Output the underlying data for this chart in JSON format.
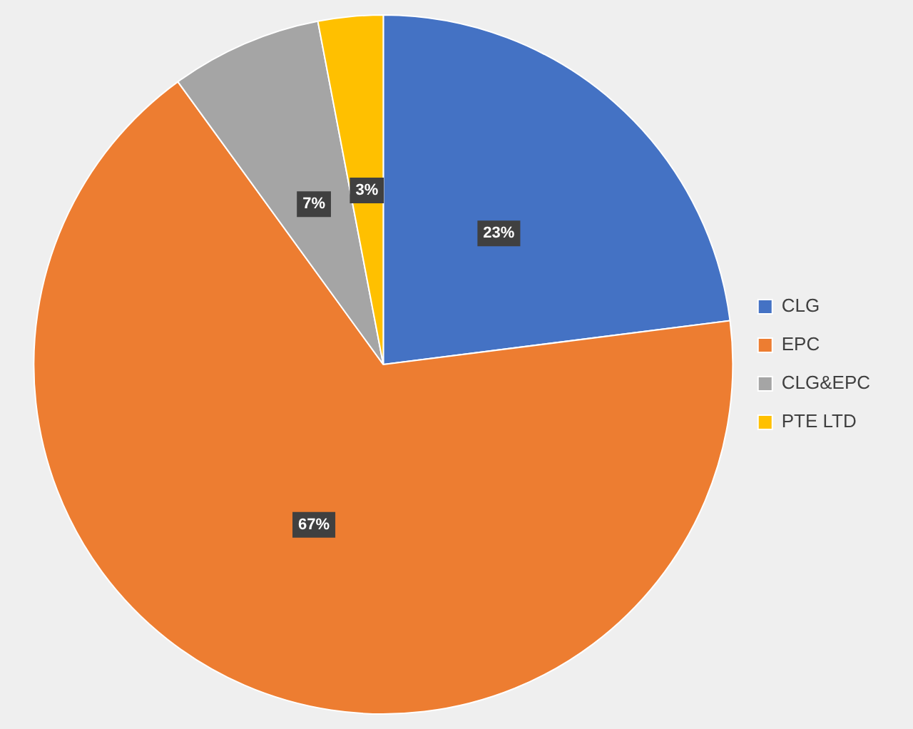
{
  "chart_data": {
    "type": "pie",
    "categories": [
      "CLG",
      "EPC",
      "CLG&EPC",
      "PTE LTD"
    ],
    "values": [
      23,
      67,
      7,
      3
    ],
    "colors": [
      "#4472c4",
      "#ed7d31",
      "#a5a5a5",
      "#ffc000"
    ],
    "value_labels": [
      "23%",
      "67%",
      "7%",
      "3%"
    ],
    "legend": "right"
  }
}
